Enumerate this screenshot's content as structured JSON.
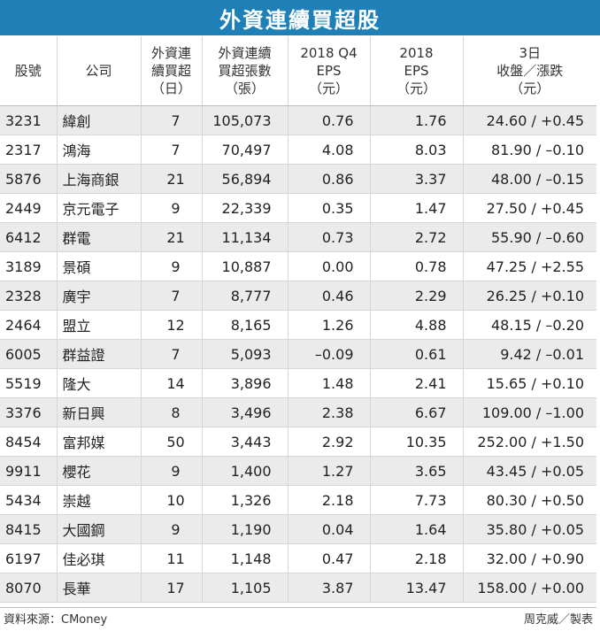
{
  "title": "外資連續買超股",
  "headers": [
    [
      "股號"
    ],
    [
      "公司"
    ],
    [
      "外資連",
      "續買超",
      "（日）"
    ],
    [
      "外資連續",
      "買超張數",
      "（張）"
    ],
    [
      "2018 Q4",
      "EPS",
      "（元）"
    ],
    [
      "2018",
      "EPS",
      "（元）"
    ],
    [
      "3日",
      "收盤／漲跌",
      "（元）"
    ]
  ],
  "rows": [
    [
      "3231",
      "緯創",
      "7",
      "105,073",
      "0.76",
      "1.76",
      "24.60 / +0.45"
    ],
    [
      "2317",
      "鴻海",
      "7",
      "70,497",
      "4.08",
      "8.03",
      "81.90 / –0.10"
    ],
    [
      "5876",
      "上海商銀",
      "21",
      "56,894",
      "0.86",
      "3.37",
      "48.00 / –0.15"
    ],
    [
      "2449",
      "京元電子",
      "9",
      "22,339",
      "0.35",
      "1.47",
      "27.50 / +0.45"
    ],
    [
      "6412",
      "群電",
      "21",
      "11,134",
      "0.73",
      "2.72",
      "55.90 / –0.60"
    ],
    [
      "3189",
      "景碩",
      "9",
      "10,887",
      "0.00",
      "0.78",
      "47.25 / +2.55"
    ],
    [
      "2328",
      "廣宇",
      "7",
      "8,777",
      "0.46",
      "2.29",
      "26.25 / +0.10"
    ],
    [
      "2464",
      "盟立",
      "12",
      "8,165",
      "1.26",
      "4.88",
      "48.15 / –0.20"
    ],
    [
      "6005",
      "群益證",
      "7",
      "5,093",
      "–0.09",
      "0.61",
      "9.42 / –0.01"
    ],
    [
      "5519",
      "隆大",
      "14",
      "3,896",
      "1.48",
      "2.41",
      "15.65 / +0.10"
    ],
    [
      "3376",
      "新日興",
      "8",
      "3,496",
      "2.38",
      "6.67",
      "109.00 / –1.00"
    ],
    [
      "8454",
      "富邦媒",
      "50",
      "3,443",
      "2.92",
      "10.35",
      "252.00 / +1.50"
    ],
    [
      "9911",
      "櫻花",
      "9",
      "1,400",
      "1.27",
      "3.65",
      "43.45 / +0.05"
    ],
    [
      "5434",
      "崇越",
      "10",
      "1,326",
      "2.18",
      "7.73",
      "80.30 / +0.50"
    ],
    [
      "8415",
      "大國鋼",
      "9",
      "1,190",
      "0.04",
      "1.64",
      "35.80 / +0.05"
    ],
    [
      "6197",
      "佳必琪",
      "11",
      "1,148",
      "0.47",
      "2.18",
      "32.00 / +0.90"
    ],
    [
      "8070",
      "長華",
      "17",
      "1,105",
      "3.87",
      "13.47",
      "158.00 / +0.00"
    ]
  ],
  "footer": {
    "source": "資料來源：CMoney",
    "credit": "周克威／製表"
  },
  "colors": {
    "title_bg": "#1f80b8",
    "title_text": "#ffffff",
    "row_alt": "#ebebeb"
  }
}
